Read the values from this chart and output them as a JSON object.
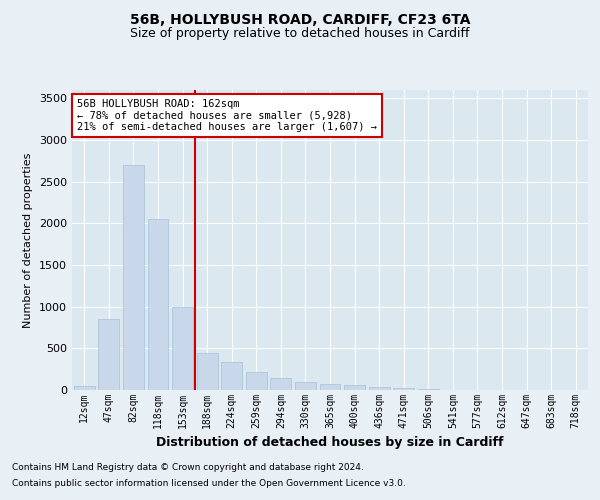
{
  "title1": "56B, HOLLYBUSH ROAD, CARDIFF, CF23 6TA",
  "title2": "Size of property relative to detached houses in Cardiff",
  "xlabel": "Distribution of detached houses by size in Cardiff",
  "ylabel": "Number of detached properties",
  "categories": [
    "12sqm",
    "47sqm",
    "82sqm",
    "118sqm",
    "153sqm",
    "188sqm",
    "224sqm",
    "259sqm",
    "294sqm",
    "330sqm",
    "365sqm",
    "400sqm",
    "436sqm",
    "471sqm",
    "506sqm",
    "541sqm",
    "577sqm",
    "612sqm",
    "647sqm",
    "683sqm",
    "718sqm"
  ],
  "values": [
    50,
    850,
    2700,
    2050,
    1000,
    450,
    340,
    220,
    140,
    100,
    75,
    55,
    40,
    30,
    10,
    0,
    0,
    0,
    0,
    0,
    0
  ],
  "bar_color": "#c8d8ea",
  "bar_edgecolor": "#a8c0d6",
  "bar_width": 0.85,
  "vline_x": 4.5,
  "vline_color": "#cc0000",
  "annotation_line1": "56B HOLLYBUSH ROAD: 162sqm",
  "annotation_line2": "← 78% of detached houses are smaller (5,928)",
  "annotation_line3": "21% of semi-detached houses are larger (1,607) →",
  "annotation_box_facecolor": "#ffffff",
  "annotation_box_edgecolor": "#cc0000",
  "ylim": [
    0,
    3600
  ],
  "yticks": [
    0,
    500,
    1000,
    1500,
    2000,
    2500,
    3000,
    3500
  ],
  "background_color": "#dce8f0",
  "grid_color": "#ffffff",
  "fig_facecolor": "#e8eff5",
  "footnote1": "Contains HM Land Registry data © Crown copyright and database right 2024.",
  "footnote2": "Contains public sector information licensed under the Open Government Licence v3.0."
}
